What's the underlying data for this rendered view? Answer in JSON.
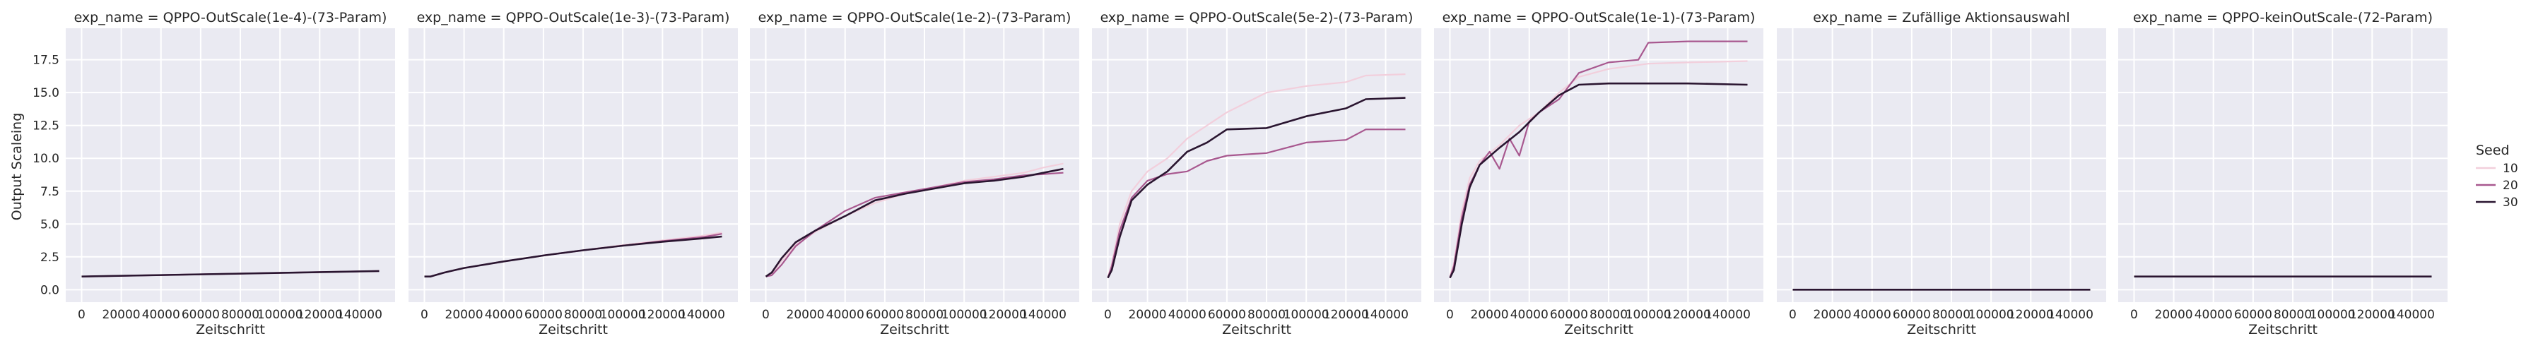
{
  "chart_data": {
    "type": "line",
    "ylabel": "Output Scaleing",
    "xlabel": "Zeitschritt",
    "xlim": [
      -8000,
      158000
    ],
    "ylim": [
      -0.95,
      19.9
    ],
    "x_ticks": [
      0,
      20000,
      40000,
      60000,
      80000,
      100000,
      120000,
      140000
    ],
    "x_tick_labels": [
      "0",
      "20000",
      "40000",
      "60000",
      "80000",
      "100000",
      "120000",
      "140000"
    ],
    "y_ticks": [
      0,
      2.5,
      5,
      7.5,
      10,
      12.5,
      15,
      17.5
    ],
    "y_tick_labels": [
      "0.0",
      "2.5",
      "5.0",
      "7.5",
      "10.0",
      "12.5",
      "15.0",
      "17.5"
    ],
    "grid": true,
    "legend": {
      "title": "Seed",
      "position": "right",
      "entries": [
        {
          "label": "10",
          "color": "#f2cfdc"
        },
        {
          "label": "20",
          "color": "#a8588f"
        },
        {
          "label": "30",
          "color": "#2a1530"
        }
      ]
    },
    "panels": [
      {
        "title": "exp_name = QPPO-OutScale(1e-4)-(73-Param)",
        "series": [
          {
            "name": "10",
            "x": [
              0,
              150000
            ],
            "y": [
              1.0,
              1.42
            ]
          },
          {
            "name": "20",
            "x": [
              0,
              150000
            ],
            "y": [
              1.0,
              1.42
            ]
          },
          {
            "name": "30",
            "x": [
              0,
              150000
            ],
            "y": [
              1.0,
              1.42
            ]
          }
        ]
      },
      {
        "title": "exp_name = QPPO-OutScale(1e-3)-(73-Param)",
        "series": [
          {
            "name": "10",
            "x": [
              0,
              3000,
              10000,
              20000,
              40000,
              60000,
              80000,
              100000,
              120000,
              140000,
              150000
            ],
            "y": [
              1.0,
              1.0,
              1.3,
              1.65,
              2.15,
              2.6,
              3.0,
              3.4,
              3.75,
              4.1,
              4.35
            ]
          },
          {
            "name": "20",
            "x": [
              0,
              3000,
              10000,
              20000,
              40000,
              60000,
              80000,
              100000,
              120000,
              140000,
              150000
            ],
            "y": [
              1.0,
              1.0,
              1.3,
              1.65,
              2.15,
              2.6,
              3.0,
              3.35,
              3.7,
              4.0,
              4.25
            ]
          },
          {
            "name": "30",
            "x": [
              0,
              3000,
              10000,
              20000,
              40000,
              60000,
              80000,
              100000,
              120000,
              140000,
              150000
            ],
            "y": [
              1.0,
              1.0,
              1.3,
              1.65,
              2.15,
              2.6,
              3.0,
              3.35,
              3.65,
              3.9,
              4.05
            ]
          }
        ]
      },
      {
        "title": "exp_name = QPPO-OutScale(1e-2)-(73-Param)",
        "series": [
          {
            "name": "10",
            "x": [
              0,
              3000,
              8000,
              15000,
              25000,
              40000,
              55000,
              70000,
              85000,
              100000,
              115000,
              130000,
              140000,
              150000
            ],
            "y": [
              1.0,
              1.2,
              2.2,
              3.4,
              4.4,
              5.6,
              6.6,
              7.3,
              7.8,
              8.3,
              8.6,
              8.9,
              9.3,
              9.6
            ]
          },
          {
            "name": "20",
            "x": [
              0,
              3000,
              8000,
              15000,
              25000,
              40000,
              55000,
              70000,
              85000,
              100000,
              115000,
              130000,
              140000,
              150000
            ],
            "y": [
              1.0,
              1.1,
              1.9,
              3.3,
              4.5,
              6.0,
              7.0,
              7.4,
              7.8,
              8.2,
              8.4,
              8.7,
              8.8,
              8.9
            ]
          },
          {
            "name": "30",
            "x": [
              0,
              3000,
              8000,
              15000,
              25000,
              40000,
              55000,
              70000,
              85000,
              100000,
              115000,
              130000,
              140000,
              150000
            ],
            "y": [
              1.0,
              1.3,
              2.4,
              3.6,
              4.5,
              5.6,
              6.8,
              7.3,
              7.7,
              8.1,
              8.3,
              8.6,
              8.9,
              9.2
            ]
          }
        ]
      },
      {
        "title": "exp_name = QPPO-OutScale(5e-2)-(73-Param)",
        "series": [
          {
            "name": "10",
            "x": [
              0,
              2000,
              6000,
              12000,
              20000,
              30000,
              40000,
              50000,
              60000,
              80000,
              100000,
              120000,
              130000,
              150000
            ],
            "y": [
              0.9,
              2.0,
              5.0,
              7.5,
              9.0,
              10.0,
              11.5,
              12.5,
              13.5,
              15.0,
              15.5,
              15.8,
              16.3,
              16.4
            ]
          },
          {
            "name": "20",
            "x": [
              0,
              2000,
              6000,
              12000,
              20000,
              30000,
              40000,
              50000,
              60000,
              80000,
              100000,
              120000,
              130000,
              150000
            ],
            "y": [
              0.9,
              1.8,
              4.5,
              7.0,
              8.3,
              8.8,
              9.0,
              9.8,
              10.2,
              10.4,
              11.2,
              11.4,
              12.2,
              12.2
            ]
          },
          {
            "name": "30",
            "x": [
              0,
              2000,
              6000,
              12000,
              20000,
              30000,
              40000,
              50000,
              60000,
              80000,
              100000,
              120000,
              130000,
              150000
            ],
            "y": [
              0.9,
              1.5,
              4.0,
              6.8,
              8.0,
              9.0,
              10.5,
              11.2,
              12.2,
              12.3,
              13.2,
              13.8,
              14.5,
              14.6
            ]
          }
        ]
      },
      {
        "title": "exp_name = QPPO-OutScale(1e-1)-(73-Param)",
        "series": [
          {
            "name": "10",
            "x": [
              0,
              2000,
              6000,
              10000,
              15000,
              25000,
              35000,
              45000,
              55000,
              65000,
              80000,
              100000,
              120000,
              150000
            ],
            "y": [
              1.0,
              2.0,
              6.0,
              8.5,
              9.8,
              11.0,
              12.5,
              13.5,
              15.0,
              16.2,
              16.8,
              17.2,
              17.3,
              17.4
            ]
          },
          {
            "name": "20",
            "x": [
              0,
              2000,
              6000,
              10000,
              15000,
              20000,
              25000,
              30000,
              35000,
              40000,
              45000,
              55000,
              65000,
              80000,
              95000,
              100000,
              120000,
              150000
            ],
            "y": [
              0.9,
              1.8,
              5.5,
              8.0,
              9.5,
              10.5,
              9.2,
              11.5,
              10.2,
              12.8,
              13.5,
              14.5,
              16.5,
              17.3,
              17.5,
              18.8,
              18.9,
              18.9
            ]
          },
          {
            "name": "30",
            "x": [
              0,
              2000,
              6000,
              10000,
              15000,
              25000,
              35000,
              45000,
              55000,
              65000,
              80000,
              100000,
              120000,
              150000
            ],
            "y": [
              0.9,
              1.5,
              5.0,
              7.8,
              9.5,
              10.8,
              12.0,
              13.5,
              14.8,
              15.6,
              15.7,
              15.7,
              15.7,
              15.6
            ]
          }
        ]
      },
      {
        "title": "exp_name = Zufällige Aktionsauswahl",
        "series": [
          {
            "name": "10",
            "x": [
              0,
              150000
            ],
            "y": [
              0.0,
              0.0
            ]
          },
          {
            "name": "20",
            "x": [
              0,
              150000
            ],
            "y": [
              0.0,
              0.0
            ]
          },
          {
            "name": "30",
            "x": [
              0,
              150000
            ],
            "y": [
              0.0,
              0.0
            ]
          }
        ]
      },
      {
        "title": "exp_name = QPPO-keinOutScale-(72-Param)",
        "series": [
          {
            "name": "10",
            "x": [
              0,
              150000
            ],
            "y": [
              1.0,
              1.0
            ]
          },
          {
            "name": "20",
            "x": [
              0,
              150000
            ],
            "y": [
              1.0,
              1.0
            ]
          },
          {
            "name": "30",
            "x": [
              0,
              150000
            ],
            "y": [
              1.0,
              1.0
            ]
          }
        ]
      }
    ]
  }
}
